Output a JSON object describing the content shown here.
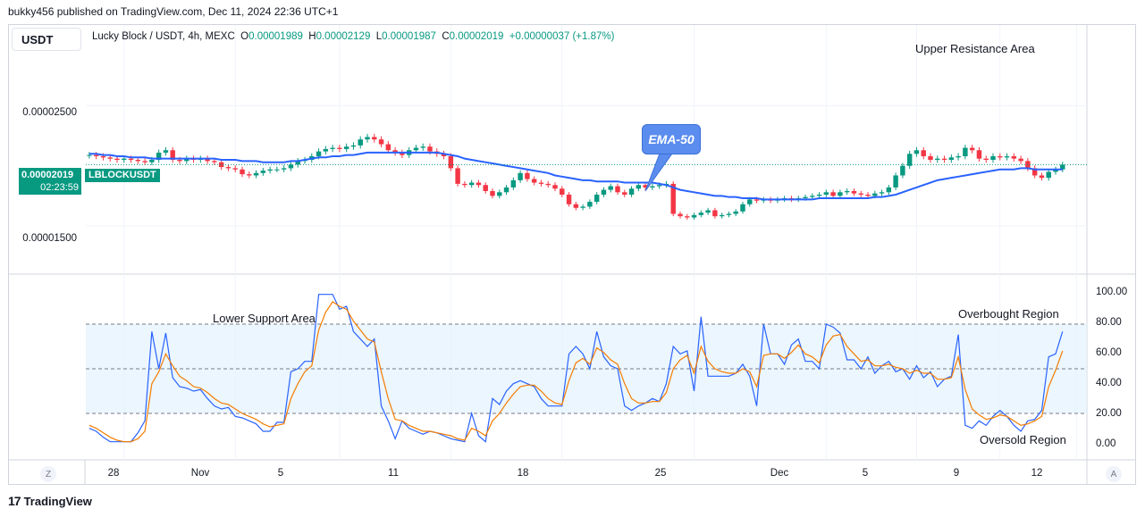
{
  "header": {
    "publisher_line": "bukky456 published on TradingView.com, Dec 11, 2024 22:36 UTC+1",
    "currency": "USDT",
    "symbol_line": "Lucky Block / USDT, 4h, MEXC",
    "ohlc": {
      "o_label": "O",
      "o": "0.00001989",
      "h_label": "H",
      "h": "0.00002129",
      "l_label": "L",
      "l": "0.00001987",
      "c_label": "C",
      "c": "0.00002019",
      "change": "+0.00000037 (+1.87%)"
    }
  },
  "price_badge": {
    "price": "0.00002019",
    "countdown": "02:23:59",
    "ticker": "LBLOCKUSDT"
  },
  "colors": {
    "up": "#089981",
    "down": "#f23645",
    "ema": "#2962ff",
    "rsi": "#2962ff",
    "rsi_ma": "#f57c00",
    "band": "#e3f2fd"
  },
  "annotations": {
    "upper_resistance": "Upper Resistance Area",
    "lower_support": "Lower Support Area",
    "ema_label": "EMA-50",
    "overbought": "Overbought Region",
    "oversold": "Oversold Region"
  },
  "footer": {
    "brand": "TradingView",
    "left_btn": "Z",
    "right_btn": "A"
  },
  "chart_data": [
    {
      "type": "candlestick",
      "pair": "Lucky Block / USDT",
      "timeframe": "4h",
      "exchange": "MEXC",
      "yticks": [
        {
          "value": 2.5e-05,
          "label": "0.00002500"
        },
        {
          "value": 1.5e-05,
          "label": "0.00001500"
        }
      ],
      "ylim": [
        1.15e-05,
        2.95e-05
      ],
      "xticks": [
        {
          "bar": 5,
          "label": "28"
        },
        {
          "bar": 21,
          "label": "Nov"
        },
        {
          "bar": 36,
          "label": "5"
        },
        {
          "bar": 52,
          "label": "11"
        },
        {
          "bar": 68,
          "label": "18"
        },
        {
          "bar": 87,
          "label": "25"
        },
        {
          "bar": 106,
          "label": "Dec"
        },
        {
          "bar": 119,
          "label": "5"
        },
        {
          "bar": 131,
          "label": "9"
        },
        {
          "bar": 142,
          "label": "12"
        }
      ],
      "closes": [
        2.09e-05,
        2.08e-05,
        2.07e-05,
        2.06e-05,
        2.05e-05,
        2.06e-05,
        2.05e-05,
        2.04e-05,
        2.03e-05,
        2.05e-05,
        2.11e-05,
        2.13e-05,
        2.05e-05,
        2.04e-05,
        2.06e-05,
        2.05e-05,
        2.06e-05,
        2.04e-05,
        2.03e-05,
        1.99e-05,
        1.98e-05,
        1.97e-05,
        1.93e-05,
        1.92e-05,
        1.94e-05,
        1.96e-05,
        1.97e-05,
        1.97e-05,
        1.98e-05,
        2.01e-05,
        2.04e-05,
        2.05e-05,
        2.08e-05,
        2.12e-05,
        2.14e-05,
        2.15e-05,
        2.14e-05,
        2.16e-05,
        2.17e-05,
        2.22e-05,
        2.24e-05,
        2.22e-05,
        2.18e-05,
        2.13e-05,
        2.11e-05,
        2.09e-05,
        2.13e-05,
        2.15e-05,
        2.16e-05,
        2.12e-05,
        2.1e-05,
        2.08e-05,
        1.98e-05,
        1.85e-05,
        1.84e-05,
        1.86e-05,
        1.84e-05,
        1.79e-05,
        1.75e-05,
        1.78e-05,
        1.82e-05,
        1.88e-05,
        1.94e-05,
        1.89e-05,
        1.86e-05,
        1.85e-05,
        1.84e-05,
        1.81e-05,
        1.76e-05,
        1.68e-05,
        1.65e-05,
        1.66e-05,
        1.7e-05,
        1.76e-05,
        1.8e-05,
        1.83e-05,
        1.78e-05,
        1.76e-05,
        1.81e-05,
        1.84e-05,
        1.82e-05,
        1.83e-05,
        1.84e-05,
        1.85e-05,
        1.6e-05,
        1.58e-05,
        1.57e-05,
        1.59e-05,
        1.61e-05,
        1.63e-05,
        1.58e-05,
        1.59e-05,
        1.6e-05,
        1.62e-05,
        1.68e-05,
        1.72e-05,
        1.71e-05,
        1.72e-05,
        1.71e-05,
        1.72e-05,
        1.73e-05,
        1.72e-05,
        1.73e-05,
        1.74e-05,
        1.75e-05,
        1.76e-05,
        1.78e-05,
        1.75e-05,
        1.78e-05,
        1.79e-05,
        1.77e-05,
        1.76e-05,
        1.75e-05,
        1.77e-05,
        1.78e-05,
        1.82e-05,
        1.92e-05,
        2e-05,
        2.1e-05,
        2.13e-05,
        2.08e-05,
        2.05e-05,
        2.06e-05,
        2.05e-05,
        2.07e-05,
        2.08e-05,
        2.15e-05,
        2.13e-05,
        2.06e-05,
        2.05e-05,
        2.08e-05,
        2.07e-05,
        2.08e-05,
        2.06e-05,
        2.04e-05,
        1.98e-05,
        1.92e-05,
        1.9e-05,
        1.95e-05,
        1.97e-05,
        2.01e-05
      ],
      "series": [
        {
          "name": "EMA-50",
          "values": [
            2.1e-05,
            2.1e-05,
            2.09e-05,
            2.09e-05,
            2.08e-05,
            2.08e-05,
            2.07e-05,
            2.07e-05,
            2.07e-05,
            2.06e-05,
            2.06e-05,
            2.06e-05,
            2.06e-05,
            2.06e-05,
            2.06e-05,
            2.06e-05,
            2.06e-05,
            2.06e-05,
            2.06e-05,
            2.05e-05,
            2.05e-05,
            2.05e-05,
            2.04e-05,
            2.04e-05,
            2.04e-05,
            2.03e-05,
            2.03e-05,
            2.03e-05,
            2.03e-05,
            2.04e-05,
            2.04e-05,
            2.05e-05,
            2.06e-05,
            2.07e-05,
            2.07e-05,
            2.08e-05,
            2.08e-05,
            2.09e-05,
            2.09e-05,
            2.1e-05,
            2.11e-05,
            2.11e-05,
            2.11e-05,
            2.11e-05,
            2.11e-05,
            2.11e-05,
            2.11e-05,
            2.11e-05,
            2.11e-05,
            2.11e-05,
            2.11e-05,
            2.1e-05,
            2.09e-05,
            2.08e-05,
            2.06e-05,
            2.05e-05,
            2.04e-05,
            2.03e-05,
            2.02e-05,
            2.01e-05,
            2e-05,
            1.99e-05,
            1.98e-05,
            1.97e-05,
            1.96e-05,
            1.95e-05,
            1.94e-05,
            1.92e-05,
            1.91e-05,
            1.9e-05,
            1.89e-05,
            1.88e-05,
            1.88e-05,
            1.87e-05,
            1.87e-05,
            1.87e-05,
            1.87e-05,
            1.86e-05,
            1.86e-05,
            1.86e-05,
            1.86e-05,
            1.86e-05,
            1.85e-05,
            1.84e-05,
            1.82e-05,
            1.8e-05,
            1.79e-05,
            1.78e-05,
            1.77e-05,
            1.76e-05,
            1.75e-05,
            1.75e-05,
            1.74e-05,
            1.74e-05,
            1.73e-05,
            1.73e-05,
            1.73e-05,
            1.72e-05,
            1.72e-05,
            1.72e-05,
            1.72e-05,
            1.72e-05,
            1.72e-05,
            1.72e-05,
            1.72e-05,
            1.73e-05,
            1.73e-05,
            1.73e-05,
            1.73e-05,
            1.73e-05,
            1.73e-05,
            1.73e-05,
            1.73e-05,
            1.74e-05,
            1.74e-05,
            1.75e-05,
            1.76e-05,
            1.78e-05,
            1.8e-05,
            1.82e-05,
            1.84e-05,
            1.86e-05,
            1.88e-05,
            1.89e-05,
            1.9e-05,
            1.91e-05,
            1.92e-05,
            1.93e-05,
            1.94e-05,
            1.95e-05,
            1.96e-05,
            1.97e-05,
            1.97e-05,
            1.97e-05,
            1.98e-05,
            1.98e-05,
            1.97e-05,
            1.97e-05,
            1.97e-05,
            1.97e-05,
            1.97e-05
          ]
        }
      ]
    },
    {
      "type": "line",
      "title": "",
      "yticks": [
        {
          "value": 100,
          "label": "100.00"
        },
        {
          "value": 80,
          "label": "80.00"
        },
        {
          "value": 60,
          "label": "60.00"
        },
        {
          "value": 40,
          "label": "40.00"
        },
        {
          "value": 20,
          "label": "20.00"
        },
        {
          "value": 0,
          "label": "0.00"
        }
      ],
      "ylim": [
        -10,
        110
      ],
      "band": [
        20,
        80
      ],
      "midline": 50,
      "series": [
        {
          "values": [
            10,
            8,
            4,
            1,
            1,
            1,
            1,
            7,
            15,
            75,
            50,
            74,
            44,
            38,
            37,
            35,
            36,
            30,
            25,
            23,
            24,
            18,
            17,
            15,
            13,
            8,
            8,
            14,
            14,
            48,
            50,
            55,
            55,
            100,
            100,
            100,
            90,
            92,
            75,
            70,
            65,
            70,
            25,
            15,
            3,
            15,
            10,
            8,
            6,
            8,
            7,
            5,
            3,
            2,
            1,
            20,
            5,
            1,
            30,
            26,
            35,
            40,
            42,
            40,
            38,
            30,
            25,
            25,
            25,
            60,
            65,
            60,
            50,
            75,
            58,
            52,
            50,
            25,
            22,
            25,
            27,
            30,
            28,
            40,
            65,
            60,
            62,
            35,
            85,
            45,
            45,
            45,
            45,
            47,
            53,
            45,
            25,
            80,
            60,
            60,
            53,
            66,
            70,
            55,
            55,
            50,
            80,
            78,
            74,
            56,
            56,
            50,
            58,
            47,
            52,
            55,
            48,
            50,
            43,
            52,
            44,
            48,
            38,
            43,
            45,
            73,
            12,
            10,
            15,
            12,
            18,
            22,
            18,
            12,
            8,
            15,
            16,
            22,
            58,
            60,
            75
          ]
        },
        {
          "values": [
            12,
            10,
            7,
            4,
            2,
            1,
            1,
            3,
            8,
            40,
            48,
            60,
            52,
            45,
            42,
            38,
            37,
            34,
            30,
            27,
            26,
            23,
            20,
            18,
            16,
            13,
            11,
            12,
            13,
            30,
            40,
            48,
            52,
            76,
            88,
            95,
            92,
            90,
            82,
            76,
            70,
            68,
            48,
            30,
            16,
            15,
            12,
            10,
            8,
            8,
            7,
            6,
            5,
            3,
            2,
            10,
            8,
            5,
            15,
            20,
            27,
            33,
            38,
            39,
            39,
            35,
            30,
            27,
            26,
            42,
            54,
            57,
            53,
            64,
            61,
            56,
            53,
            40,
            30,
            27,
            27,
            28,
            28,
            34,
            50,
            56,
            59,
            47,
            65,
            55,
            50,
            48,
            47,
            47,
            50,
            48,
            38,
            59,
            60,
            60,
            57,
            61,
            66,
            60,
            58,
            54,
            66,
            72,
            73,
            65,
            60,
            55,
            56,
            52,
            52,
            53,
            51,
            50,
            47,
            49,
            47,
            47,
            43,
            43,
            44,
            58,
            36,
            23,
            19,
            16,
            17,
            19,
            18,
            15,
            12,
            13,
            15,
            18,
            38,
            49,
            62
          ]
        }
      ]
    }
  ]
}
